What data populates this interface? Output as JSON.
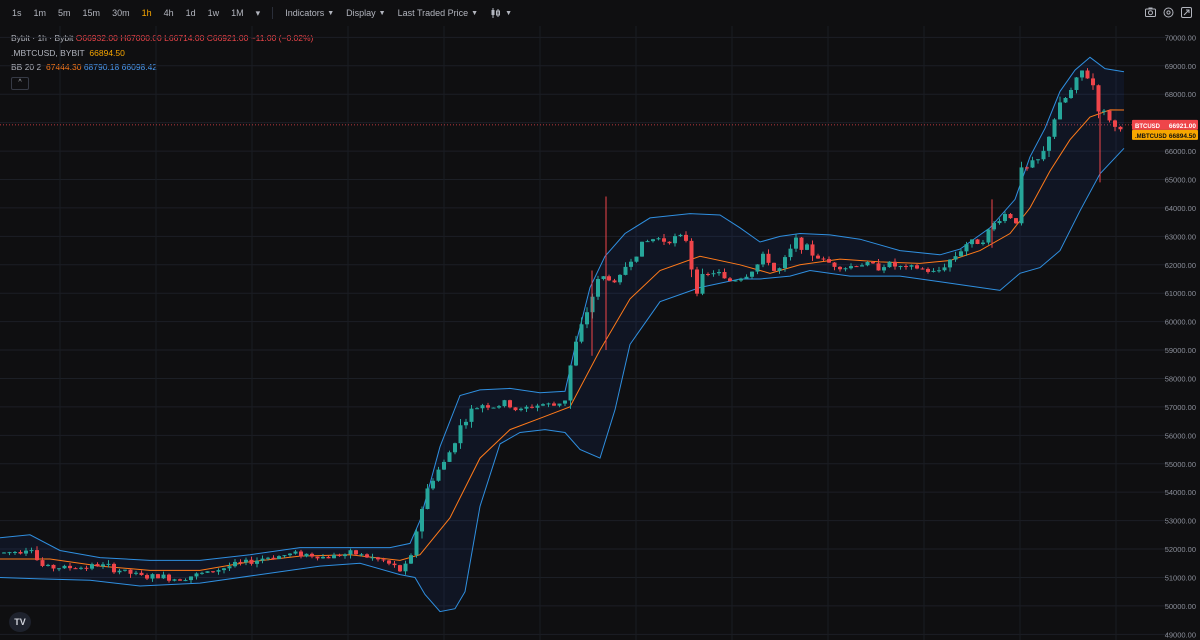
{
  "toolbar": {
    "timeframes": [
      "1s",
      "1m",
      "5m",
      "15m",
      "30m",
      "1h",
      "4h",
      "1d",
      "1w",
      "1M"
    ],
    "active_timeframe": "1h",
    "indicators_label": "Indicators",
    "display_label": "Display",
    "price_source_label": "Last Traded Price"
  },
  "legend": {
    "symbol_line": "Bybit · 1h · Bybit",
    "open": "O66932.00",
    "high": "H67000.00",
    "low": "L66714.00",
    "close": "C66921.00",
    "change": "−11.00 (−0.02%)",
    "mark_symbol": ".MBTCUSD, BYBIT",
    "mark_value": "66894.50",
    "bb_label": "BB 20 2",
    "bb_basis": "67444.30",
    "bb_upper": "68790.18",
    "bb_lower": "66098.42"
  },
  "price_tags": {
    "last": {
      "symbol": "BTCUSD",
      "value": "66921.00"
    },
    "mark": {
      "symbol": ".MBTCUSD",
      "value": "66894.50"
    }
  },
  "logo_text": "TV",
  "chart_data": {
    "type": "candlestick",
    "y_range": [
      48800,
      70400
    ],
    "y_ticks": [
      "49000.00",
      "50000.00",
      "51000.00",
      "52000.00",
      "53000.00",
      "54000.00",
      "55000.00",
      "56000.00",
      "57000.00",
      "58000.00",
      "59000.00",
      "60000.00",
      "61000.00",
      "62000.00",
      "63000.00",
      "64000.00",
      "65000.00",
      "66000.00",
      "67000.00",
      "68000.00",
      "69000.00",
      "70000.00"
    ],
    "last_price": 66921,
    "mark_price": 66894.5,
    "colors": {
      "up": "#26a69a",
      "down": "#ef454a",
      "basis": "#ff7a1a",
      "band": "#2f8fe0",
      "band_fill": "rgba(41,98,255,0.08)",
      "last_line": "#ef454a"
    },
    "price_path": [
      [
        0,
        51850
      ],
      [
        12,
        51900
      ],
      [
        22,
        51950
      ],
      [
        30,
        52150
      ],
      [
        40,
        51400
      ],
      [
        55,
        51350
      ],
      [
        70,
        51350
      ],
      [
        85,
        51350
      ],
      [
        100,
        51450
      ],
      [
        115,
        51300
      ],
      [
        130,
        51150
      ],
      [
        145,
        51000
      ],
      [
        160,
        51050
      ],
      [
        175,
        50950
      ],
      [
        190,
        51050
      ],
      [
        205,
        51150
      ],
      [
        220,
        51300
      ],
      [
        235,
        51450
      ],
      [
        250,
        51550
      ],
      [
        265,
        51700
      ],
      [
        280,
        51750
      ],
      [
        295,
        51850
      ],
      [
        310,
        51800
      ],
      [
        325,
        51700
      ],
      [
        340,
        51800
      ],
      [
        355,
        51850
      ],
      [
        370,
        51700
      ],
      [
        385,
        51550
      ],
      [
        400,
        51250
      ],
      [
        410,
        51500
      ],
      [
        418,
        53000
      ],
      [
        426,
        53950
      ],
      [
        434,
        54600
      ],
      [
        446,
        55100
      ],
      [
        458,
        56150
      ],
      [
        470,
        56800
      ],
      [
        482,
        57100
      ],
      [
        494,
        57000
      ],
      [
        506,
        57150
      ],
      [
        518,
        56850
      ],
      [
        530,
        57000
      ],
      [
        542,
        57100
      ],
      [
        554,
        57050
      ],
      [
        566,
        57300
      ],
      [
        572,
        58800
      ],
      [
        580,
        59600
      ],
      [
        590,
        60700
      ],
      [
        598,
        61400
      ],
      [
        606,
        61650
      ],
      [
        616,
        61250
      ],
      [
        626,
        62000
      ],
      [
        636,
        62450
      ],
      [
        646,
        62800
      ],
      [
        656,
        62950
      ],
      [
        666,
        62850
      ],
      [
        676,
        62950
      ],
      [
        686,
        62900
      ],
      [
        696,
        61200
      ],
      [
        706,
        61600
      ],
      [
        716,
        61800
      ],
      [
        726,
        61400
      ],
      [
        736,
        61500
      ],
      [
        746,
        61650
      ],
      [
        756,
        61950
      ],
      [
        766,
        62350
      ],
      [
        776,
        61650
      ],
      [
        786,
        62200
      ],
      [
        796,
        62850
      ],
      [
        806,
        62600
      ],
      [
        816,
        62300
      ],
      [
        826,
        62100
      ],
      [
        836,
        62000
      ],
      [
        846,
        61900
      ],
      [
        856,
        62000
      ],
      [
        866,
        62050
      ],
      [
        876,
        61900
      ],
      [
        886,
        62050
      ],
      [
        896,
        61950
      ],
      [
        906,
        61850
      ],
      [
        916,
        61900
      ],
      [
        926,
        61800
      ],
      [
        936,
        61700
      ],
      [
        946,
        62050
      ],
      [
        956,
        62350
      ],
      [
        966,
        62750
      ],
      [
        976,
        62800
      ],
      [
        986,
        63000
      ],
      [
        996,
        63550
      ],
      [
        1006,
        63800
      ],
      [
        1016,
        63550
      ],
      [
        1022,
        65200
      ],
      [
        1032,
        65550
      ],
      [
        1042,
        65750
      ],
      [
        1052,
        67000
      ],
      [
        1062,
        67700
      ],
      [
        1072,
        68150
      ],
      [
        1082,
        68800
      ],
      [
        1092,
        68450
      ],
      [
        1100,
        67400
      ],
      [
        1108,
        67250
      ],
      [
        1116,
        66750
      ],
      [
        1124,
        66921
      ]
    ],
    "bb_upper": [
      [
        0,
        52400
      ],
      [
        30,
        52500
      ],
      [
        60,
        51950
      ],
      [
        100,
        51700
      ],
      [
        150,
        51600
      ],
      [
        200,
        51600
      ],
      [
        250,
        51800
      ],
      [
        300,
        52050
      ],
      [
        350,
        52050
      ],
      [
        390,
        52050
      ],
      [
        410,
        52200
      ],
      [
        420,
        53000
      ],
      [
        440,
        55600
      ],
      [
        460,
        57400
      ],
      [
        480,
        57600
      ],
      [
        510,
        57650
      ],
      [
        540,
        57500
      ],
      [
        565,
        57550
      ],
      [
        575,
        59100
      ],
      [
        590,
        61200
      ],
      [
        605,
        62300
      ],
      [
        625,
        63100
      ],
      [
        650,
        63650
      ],
      [
        690,
        63800
      ],
      [
        720,
        63750
      ],
      [
        740,
        63300
      ],
      [
        760,
        62800
      ],
      [
        780,
        63000
      ],
      [
        800,
        63100
      ],
      [
        830,
        63050
      ],
      [
        860,
        62900
      ],
      [
        900,
        62500
      ],
      [
        940,
        62350
      ],
      [
        960,
        62550
      ],
      [
        990,
        63300
      ],
      [
        1015,
        64300
      ],
      [
        1030,
        65800
      ],
      [
        1045,
        66800
      ],
      [
        1060,
        68100
      ],
      [
        1075,
        68850
      ],
      [
        1090,
        69300
      ],
      [
        1105,
        68900
      ],
      [
        1124,
        68790
      ]
    ],
    "bb_basis": [
      [
        0,
        51650
      ],
      [
        50,
        51650
      ],
      [
        100,
        51400
      ],
      [
        150,
        51250
      ],
      [
        200,
        51250
      ],
      [
        250,
        51550
      ],
      [
        300,
        51750
      ],
      [
        350,
        51800
      ],
      [
        400,
        51600
      ],
      [
        420,
        51800
      ],
      [
        450,
        53100
      ],
      [
        480,
        55200
      ],
      [
        510,
        56200
      ],
      [
        540,
        56600
      ],
      [
        570,
        57000
      ],
      [
        600,
        59000
      ],
      [
        630,
        60800
      ],
      [
        660,
        61800
      ],
      [
        700,
        62300
      ],
      [
        740,
        62000
      ],
      [
        770,
        61700
      ],
      [
        800,
        62000
      ],
      [
        840,
        62200
      ],
      [
        880,
        62100
      ],
      [
        920,
        62050
      ],
      [
        950,
        62150
      ],
      [
        980,
        62500
      ],
      [
        1010,
        63100
      ],
      [
        1030,
        64000
      ],
      [
        1050,
        65300
      ],
      [
        1070,
        66400
      ],
      [
        1090,
        67200
      ],
      [
        1110,
        67450
      ],
      [
        1124,
        67444
      ]
    ],
    "bb_lower": [
      [
        0,
        51000
      ],
      [
        40,
        50950
      ],
      [
        90,
        50900
      ],
      [
        140,
        50700
      ],
      [
        200,
        50800
      ],
      [
        260,
        51100
      ],
      [
        320,
        51400
      ],
      [
        360,
        51500
      ],
      [
        400,
        51100
      ],
      [
        415,
        51000
      ],
      [
        425,
        50400
      ],
      [
        440,
        49800
      ],
      [
        455,
        49900
      ],
      [
        465,
        50500
      ],
      [
        480,
        53500
      ],
      [
        500,
        55700
      ],
      [
        520,
        56100
      ],
      [
        545,
        56200
      ],
      [
        565,
        56100
      ],
      [
        580,
        55500
      ],
      [
        600,
        55200
      ],
      [
        615,
        56900
      ],
      [
        630,
        59200
      ],
      [
        660,
        60700
      ],
      [
        700,
        61200
      ],
      [
        740,
        61500
      ],
      [
        760,
        61500
      ],
      [
        790,
        61600
      ],
      [
        810,
        61800
      ],
      [
        850,
        61600
      ],
      [
        900,
        61600
      ],
      [
        940,
        61400
      ],
      [
        980,
        61200
      ],
      [
        1000,
        61100
      ],
      [
        1020,
        61700
      ],
      [
        1040,
        61900
      ],
      [
        1060,
        62500
      ],
      [
        1080,
        63900
      ],
      [
        1100,
        65200
      ],
      [
        1124,
        66098
      ]
    ]
  }
}
